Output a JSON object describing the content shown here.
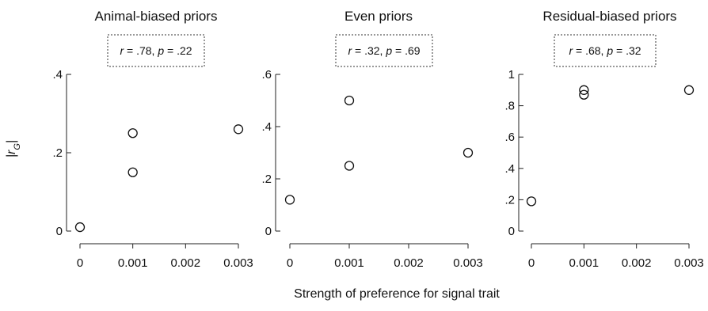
{
  "chart_data": [
    {
      "type": "scatter",
      "title": "Animal-biased priors",
      "stat": {
        "r": ".78",
        "p": ".22"
      },
      "xlabel": "Strength of preference for signal trait",
      "ylabel": "|rG|",
      "xlim": [
        0,
        0.003
      ],
      "ylim": [
        0,
        0.4
      ],
      "x_ticks": [
        "0",
        "0.001",
        "0.002",
        "0.003"
      ],
      "y_ticks": [
        "0",
        ".2",
        ".4"
      ],
      "points": [
        {
          "x": 0,
          "y": 0.01
        },
        {
          "x": 0.001,
          "y": 0.25
        },
        {
          "x": 0.001,
          "y": 0.15
        },
        {
          "x": 0.003,
          "y": 0.26
        }
      ]
    },
    {
      "type": "scatter",
      "title": "Even priors",
      "stat": {
        "r": ".32",
        "p": ".69"
      },
      "xlabel": "Strength of preference for signal trait",
      "ylabel": "|rG|",
      "xlim": [
        0,
        0.003
      ],
      "ylim": [
        0,
        0.6
      ],
      "x_ticks": [
        "0",
        "0.001",
        "0.002",
        "0.003"
      ],
      "y_ticks": [
        "0",
        ".2",
        ".4",
        ".6"
      ],
      "points": [
        {
          "x": 0,
          "y": 0.12
        },
        {
          "x": 0.001,
          "y": 0.5
        },
        {
          "x": 0.001,
          "y": 0.25
        },
        {
          "x": 0.003,
          "y": 0.3
        }
      ]
    },
    {
      "type": "scatter",
      "title": "Residual-biased priors",
      "stat": {
        "r": ".68",
        "p": ".32"
      },
      "xlabel": "Strength of preference for signal trait",
      "ylabel": "|rG|",
      "xlim": [
        0,
        0.003
      ],
      "ylim": [
        0,
        1
      ],
      "x_ticks": [
        "0",
        "0.001",
        "0.002",
        "0.003"
      ],
      "y_ticks": [
        "0",
        ".2",
        ".4",
        ".6",
        ".8",
        "1"
      ],
      "points": [
        {
          "x": 0,
          "y": 0.19
        },
        {
          "x": 0.001,
          "y": 0.9
        },
        {
          "x": 0.001,
          "y": 0.87
        },
        {
          "x": 0.003,
          "y": 0.9
        }
      ]
    }
  ],
  "shared_xlabel": "Strength of preference for signal trait",
  "shared_ylabel": {
    "prefix": "|r",
    "subscript": "G",
    "suffix": "|"
  },
  "stat_labels": {
    "r": "r",
    "p": "p"
  }
}
